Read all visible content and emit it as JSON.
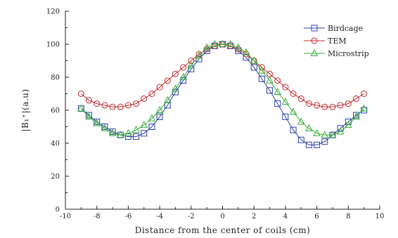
{
  "chart_data": {
    "type": "line",
    "title": "",
    "xlabel": "Distance from the center of coils (cm)",
    "ylabel": "|B₁⁺|(a.u)",
    "xlim": [
      -10,
      10
    ],
    "ylim": [
      0,
      120
    ],
    "xticks": [
      -10,
      -8,
      -6,
      -4,
      -2,
      0,
      2,
      4,
      6,
      8,
      10
    ],
    "yticks": [
      0,
      20,
      40,
      60,
      80,
      100,
      120
    ],
    "grid": false,
    "legend_position": "top-right",
    "x": [
      -9,
      -8.5,
      -8,
      -7.5,
      -7,
      -6.5,
      -6,
      -5.5,
      -5,
      -4.5,
      -4,
      -3.5,
      -3,
      -2.5,
      -2,
      -1.5,
      -1,
      -0.5,
      0,
      0.5,
      1,
      1.5,
      2,
      2.5,
      3,
      3.5,
      4,
      4.5,
      5,
      5.5,
      6,
      6.5,
      7,
      7.5,
      8,
      8.5,
      9
    ],
    "series": [
      {
        "name": "Birdcage",
        "marker": "square",
        "color": "#2b3fa8",
        "values": [
          61,
          57,
          53,
          50,
          47,
          45,
          44,
          44,
          46,
          50,
          56,
          63,
          71,
          78,
          85,
          91,
          96,
          99,
          100,
          99,
          96,
          92,
          86,
          79,
          72,
          64,
          56,
          48,
          42,
          39,
          39,
          41,
          45,
          49,
          53,
          57,
          60
        ]
      },
      {
        "name": "TEM",
        "marker": "circle",
        "color": "#c0282d",
        "values": [
          70,
          66,
          64,
          63,
          62,
          62,
          63,
          64,
          67,
          70,
          74,
          78,
          82,
          86,
          90,
          94,
          97,
          99,
          100,
          99,
          97,
          94,
          90,
          86,
          82,
          78,
          74,
          70,
          67,
          64,
          63,
          62,
          62,
          63,
          64,
          67,
          70
        ]
      },
      {
        "name": "Microstrip",
        "marker": "triangle",
        "color": "#3aaa3a",
        "values": [
          61,
          56,
          52,
          49,
          46,
          45,
          46,
          48,
          51,
          55,
          60,
          66,
          73,
          80,
          87,
          93,
          98,
          100,
          100,
          100,
          98,
          95,
          90,
          84,
          78,
          71,
          65,
          59,
          53,
          49,
          46,
          45,
          45,
          47,
          51,
          56,
          61
        ]
      }
    ]
  }
}
